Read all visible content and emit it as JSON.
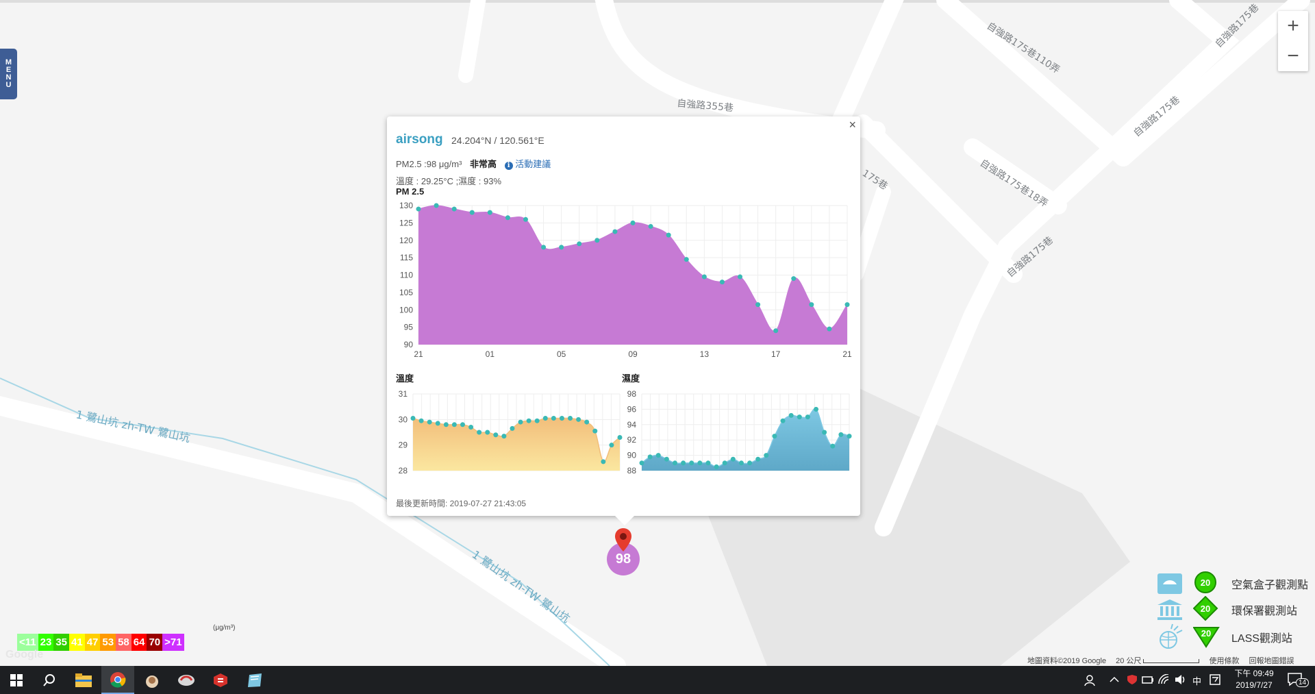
{
  "menu": {
    "letters": [
      "M",
      "E",
      "N",
      "U"
    ]
  },
  "zoom": {
    "in": "+",
    "out": "−"
  },
  "map": {
    "road_labels": [
      "自強路175巷110弄",
      "自強路175巷",
      "自強路355巷",
      "自強路175巷18弄",
      "自強路175巷",
      "175巷",
      "自強路175巷"
    ],
    "river_labels": [
      "1 鷺山坑 zh-TW 鷺山坑",
      "1 鷺山坑 zh-TW 鷺山坑"
    ]
  },
  "popup": {
    "close": "×",
    "station": "airsong",
    "coords": "24.204°N / 120.561°E",
    "pm_text": "PM2.5 :98 μg/m³",
    "pm_level": "非常高",
    "info_icon": "i",
    "advice_link": "活動建議",
    "weather": "溫度 : 29.25°C ;濕度 : 93%",
    "pm_chart_title": "PM 2.5",
    "temp_chart_title": "溫度",
    "humidity_chart_title": "濕度",
    "updated": "最後更新時間: 2019-07-27 21:43:05"
  },
  "chart_data": [
    {
      "type": "area",
      "title": "PM 2.5",
      "x_ticks": [
        "21",
        "01",
        "05",
        "09",
        "13",
        "17",
        "21"
      ],
      "y_ticks": [
        90,
        95,
        100,
        105,
        110,
        115,
        120,
        125,
        130
      ],
      "ylim": [
        90,
        130
      ],
      "color": "#c67ad4",
      "values": [
        129,
        130,
        129,
        128,
        128,
        126.5,
        126,
        118,
        118,
        119,
        120,
        122.5,
        125,
        124,
        121.5,
        114.5,
        109.5,
        108,
        109.5,
        101.5,
        94,
        109,
        101.5,
        94.5,
        101.5
      ]
    },
    {
      "type": "area",
      "title": "溫度",
      "y_ticks": [
        28,
        29,
        30,
        31
      ],
      "ylim": [
        28,
        31
      ],
      "color": "#f5c97a",
      "values": [
        30.05,
        29.95,
        29.9,
        29.85,
        29.8,
        29.8,
        29.8,
        29.7,
        29.5,
        29.5,
        29.4,
        29.35,
        29.65,
        29.9,
        29.95,
        29.95,
        30.05,
        30.05,
        30.05,
        30.05,
        30.0,
        29.9,
        29.55,
        28.35,
        29.0,
        29.3
      ]
    },
    {
      "type": "area",
      "title": "濕度",
      "y_ticks": [
        88,
        90,
        92,
        94,
        96,
        98
      ],
      "ylim": [
        88,
        98
      ],
      "color": "#7ec8e3",
      "values": [
        89,
        89.8,
        90,
        89.5,
        89,
        89,
        89,
        89,
        89,
        88.5,
        89,
        89.5,
        89,
        89,
        89.5,
        90,
        92.5,
        94.5,
        95.2,
        95,
        95,
        96,
        93,
        91.2,
        92.7,
        92.5
      ]
    }
  ],
  "marker": {
    "value": "98"
  },
  "scale": {
    "unit": "(μg/m³)",
    "cells": [
      {
        "label": "<11",
        "color": "#9cff9c"
      },
      {
        "label": "23",
        "color": "#31ff00"
      },
      {
        "label": "35",
        "color": "#31cf00"
      },
      {
        "label": "41",
        "color": "#ffff00"
      },
      {
        "label": "47",
        "color": "#ffcf00"
      },
      {
        "label": "53",
        "color": "#ff9a00"
      },
      {
        "label": "58",
        "color": "#ff6464"
      },
      {
        "label": "64",
        "color": "#ff0000"
      },
      {
        "label": "70",
        "color": "#990000"
      },
      {
        "label": ">71",
        "color": "#ce30ff"
      }
    ]
  },
  "google_logo": "Google",
  "legend": [
    {
      "icon": "airbox-icon",
      "badge": "20",
      "label": "空氣盒子觀測點"
    },
    {
      "icon": "epa-building-icon",
      "badge": "20",
      "label": "環保署觀測站"
    },
    {
      "icon": "lass-globe-icon",
      "badge": "20",
      "label": "LASS觀測站"
    }
  ],
  "attribution": {
    "map_data": "地圖資料©2019 Google",
    "scale": "20 公尺",
    "terms": "使用條款",
    "report": "回報地圖錯誤"
  },
  "taskbar": {
    "ime": "中",
    "time": "下午 09:49",
    "date": "2019/7/27",
    "notifications": "14"
  }
}
